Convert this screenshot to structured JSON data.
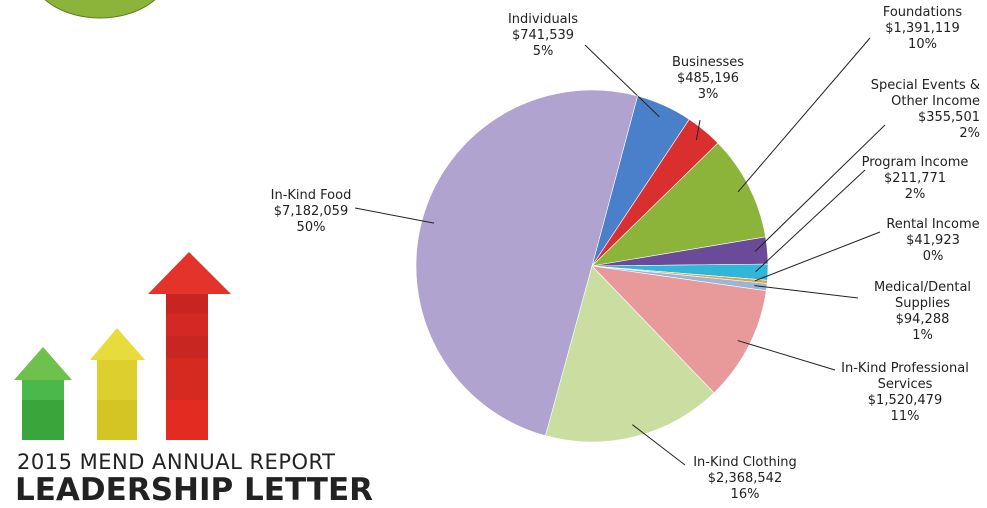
{
  "chart_data": {
    "type": "pie",
    "categories": [
      "Individuals",
      "Businesses",
      "Foundations",
      "Special Events & Other Income",
      "Program Income",
      "Rental Income",
      "Medical/Dental Supplies",
      "In-Kind Professional Services",
      "In-Kind Clothing",
      "In-Kind Food"
    ],
    "values": [
      741539,
      485196,
      1391119,
      355501,
      211771,
      41923,
      94288,
      1520479,
      2368542,
      7182059
    ],
    "value_labels": [
      "$741,539",
      "$485,196",
      "$1,391,119",
      "$355,501",
      "$211,771",
      "$41,923",
      "$94,288",
      "$1,520,479",
      "$2,368,542",
      "$7,182,059"
    ],
    "percent_labels": [
      "5%",
      "3%",
      "10%",
      "2%",
      "2%",
      "0%",
      "1%",
      "11%",
      "16%",
      "50%"
    ],
    "colors": [
      "#4a7fc9",
      "#d9302f",
      "#8db43a",
      "#6b4a9a",
      "#2fb6d8",
      "#e8a03a",
      "#9ab5d8",
      "#e89a9a",
      "#c9dea0",
      "#b0a3cf"
    ]
  },
  "report": {
    "subtitle": "2015 MEND ANNUAL REPORT",
    "title": "LEADERSHIP LETTER"
  }
}
